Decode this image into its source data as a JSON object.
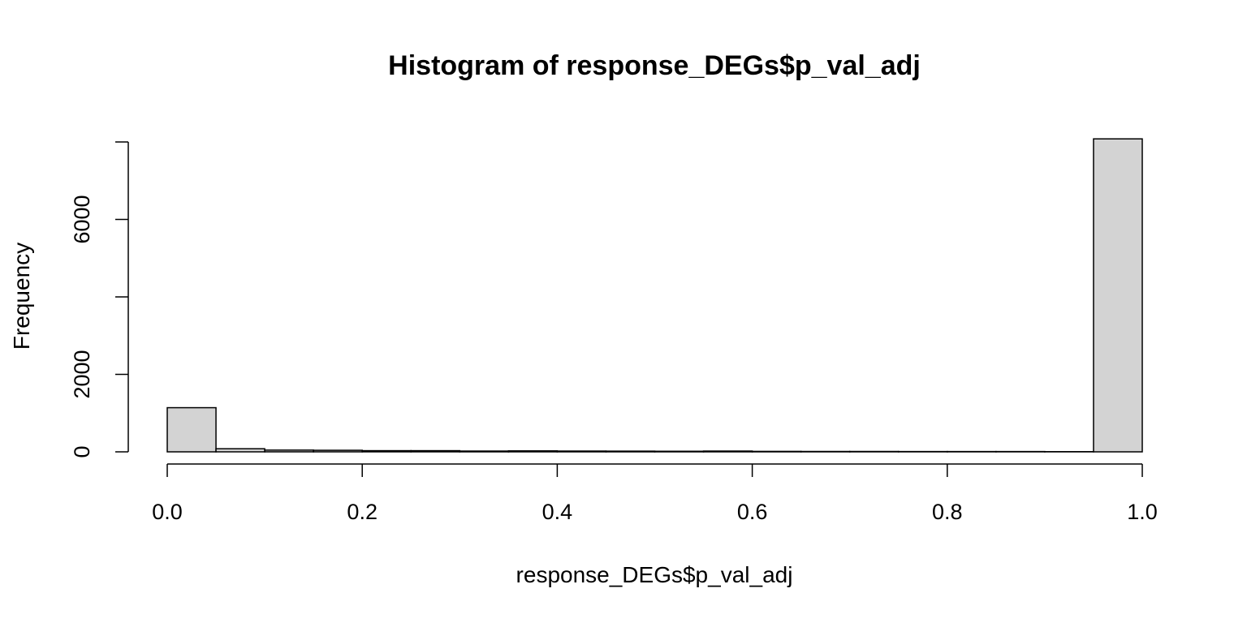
{
  "chart_data": {
    "type": "bar",
    "title": "Histogram of response_DEGs$p_val_adj",
    "xlabel": "response_DEGs$p_val_adj",
    "ylabel": "Frequency",
    "bin_width": 0.05,
    "bins": [
      {
        "start": 0.0,
        "end": 0.05,
        "count": 1140
      },
      {
        "start": 0.05,
        "end": 0.1,
        "count": 80
      },
      {
        "start": 0.1,
        "end": 0.15,
        "count": 45
      },
      {
        "start": 0.15,
        "end": 0.2,
        "count": 40
      },
      {
        "start": 0.2,
        "end": 0.25,
        "count": 30
      },
      {
        "start": 0.25,
        "end": 0.3,
        "count": 30
      },
      {
        "start": 0.3,
        "end": 0.35,
        "count": 20
      },
      {
        "start": 0.35,
        "end": 0.4,
        "count": 25
      },
      {
        "start": 0.4,
        "end": 0.45,
        "count": 20
      },
      {
        "start": 0.45,
        "end": 0.5,
        "count": 18
      },
      {
        "start": 0.5,
        "end": 0.55,
        "count": 15
      },
      {
        "start": 0.55,
        "end": 0.6,
        "count": 20
      },
      {
        "start": 0.6,
        "end": 0.65,
        "count": 12
      },
      {
        "start": 0.65,
        "end": 0.7,
        "count": 10
      },
      {
        "start": 0.7,
        "end": 0.75,
        "count": 10
      },
      {
        "start": 0.75,
        "end": 0.8,
        "count": 8
      },
      {
        "start": 0.8,
        "end": 0.85,
        "count": 8
      },
      {
        "start": 0.85,
        "end": 0.9,
        "count": 8
      },
      {
        "start": 0.9,
        "end": 0.95,
        "count": 5
      },
      {
        "start": 0.95,
        "end": 1.0,
        "count": 8080
      }
    ],
    "xlim": [
      0,
      1
    ],
    "ylim": [
      0,
      8000
    ],
    "x_ticks": [
      0,
      0.2,
      0.4,
      0.6,
      0.8,
      1
    ],
    "x_tick_labels": [
      "0.0",
      "0.2",
      "0.4",
      "0.6",
      "0.8",
      "1.0"
    ],
    "y_ticks": [
      0,
      2000,
      4000,
      6000,
      8000
    ],
    "y_tick_labels": [
      "0",
      "2000",
      "",
      "6000",
      ""
    ],
    "bar_fill": "#d3d3d3",
    "bar_stroke": "#000000",
    "grid": false,
    "legend": "none"
  }
}
